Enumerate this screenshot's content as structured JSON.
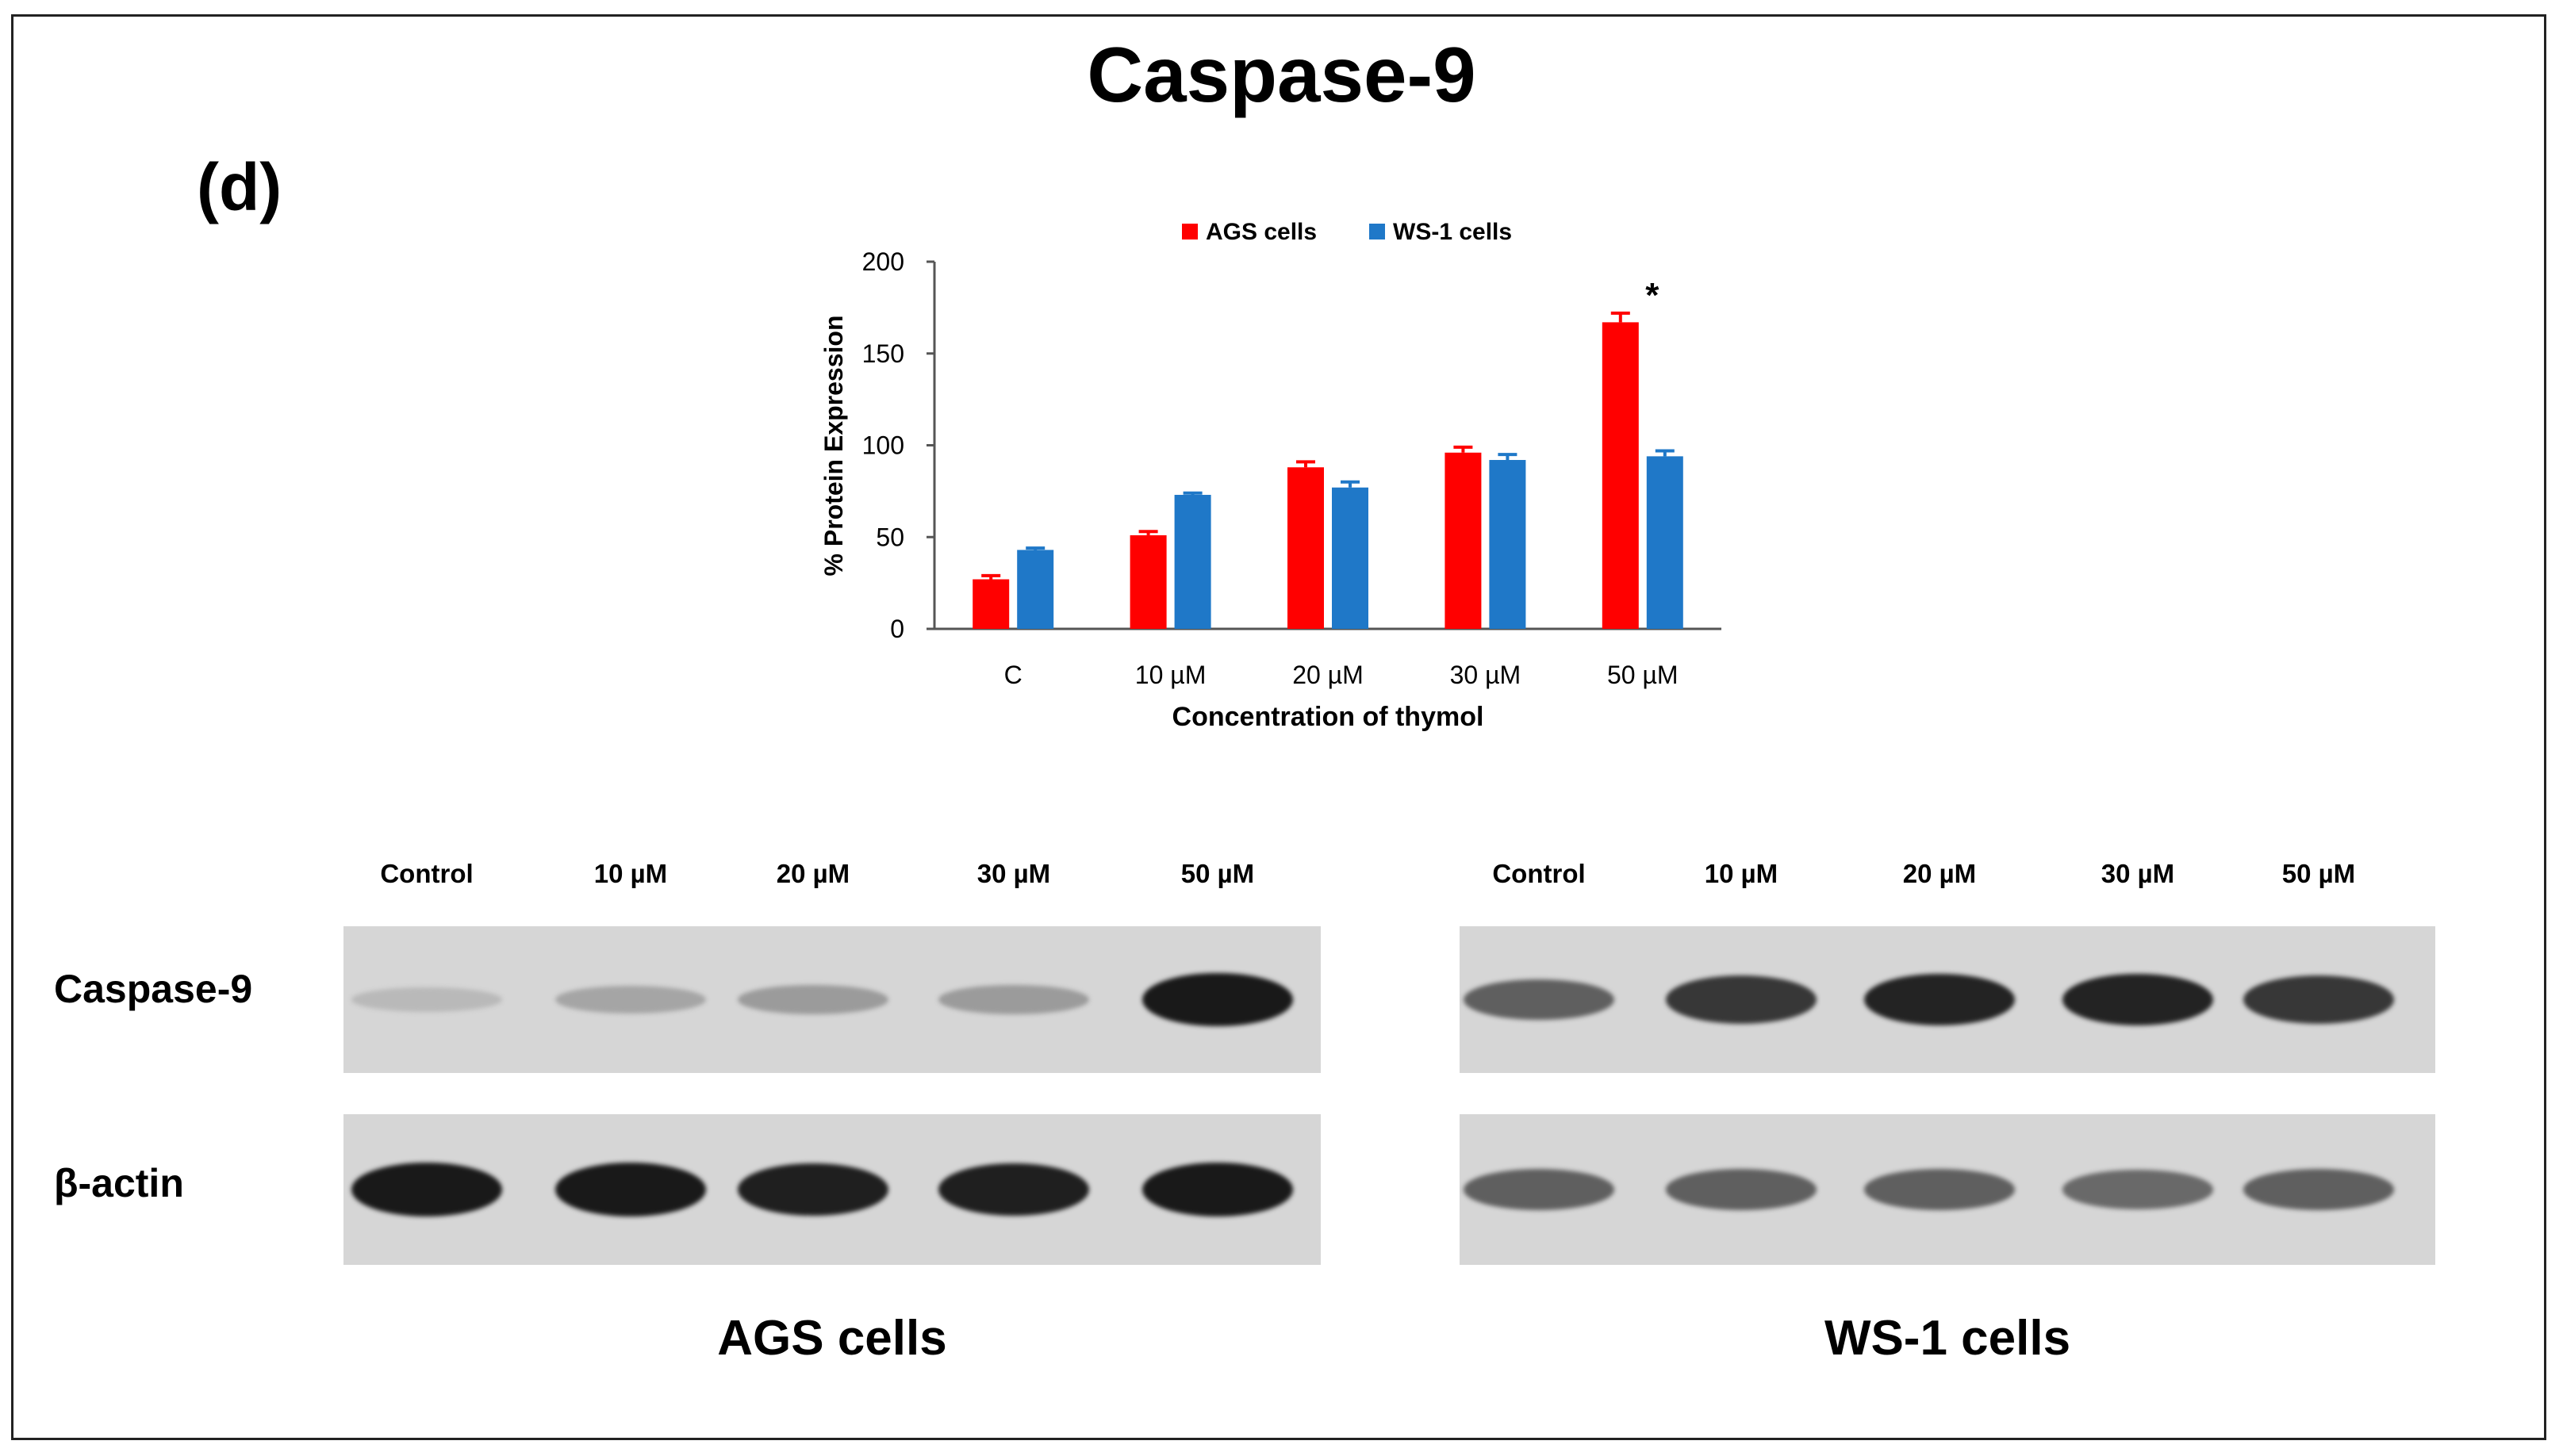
{
  "figure": {
    "title": "Caspase-9",
    "panel_label": "(d)"
  },
  "chart_data": {
    "type": "bar",
    "categories": [
      "C",
      "10 µM",
      "20 µM",
      "30 µM",
      "50 µM"
    ],
    "series": [
      {
        "name": "AGS cells",
        "values": [
          27,
          51,
          88,
          96,
          167
        ],
        "errors": [
          2,
          2,
          3,
          3,
          5
        ],
        "color": "#ff0000"
      },
      {
        "name": "WS-1 cells",
        "values": [
          43,
          73,
          77,
          92,
          94
        ],
        "errors": [
          1,
          1,
          3,
          3,
          3
        ],
        "color": "#1f78c8"
      }
    ],
    "xlabel": "Concentration of thymol",
    "ylabel": "% Protein Expression",
    "ylim": [
      0,
      200
    ],
    "yticks": [
      "0",
      "50",
      "100",
      "150",
      "200"
    ],
    "legend_position": "top",
    "grid": false,
    "annotations": [
      {
        "category": "50 µM",
        "series": "AGS cells",
        "text": "*"
      }
    ]
  },
  "blots": {
    "lanes": [
      "Control",
      "10 µM",
      "20 µM",
      "30 µM",
      "50 µM"
    ],
    "rows": [
      "Caspase-9",
      "β-actin"
    ],
    "groups": [
      {
        "label": "AGS cells",
        "caspase_intensity": [
          0.15,
          0.25,
          0.3,
          0.3,
          0.95
        ],
        "actin_intensity": [
          0.95,
          0.95,
          0.92,
          0.92,
          0.95
        ]
      },
      {
        "label": "WS-1 cells",
        "caspase_intensity": [
          0.6,
          0.8,
          0.9,
          0.9,
          0.8
        ],
        "actin_intensity": [
          0.6,
          0.6,
          0.6,
          0.55,
          0.6
        ]
      }
    ]
  }
}
